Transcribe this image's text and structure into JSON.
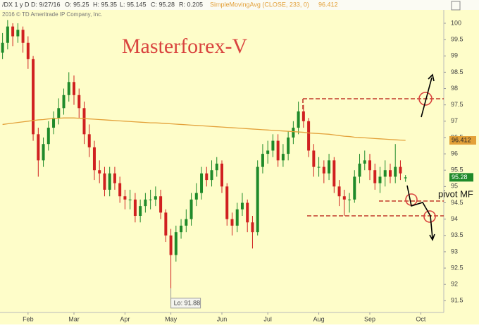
{
  "header": {
    "symbol": "/DX 1 y D",
    "date": "D: 9/27/16",
    "open": "O: 95.25",
    "high": "H: 95.35",
    "low": "L: 95.145",
    "close": "C: 95.28",
    "range": "R: 0.205",
    "study": "SimpleMovingAvg (CLOSE, 233, 0)",
    "study_value": "96.412",
    "copyright": "2016 © TD Ameritrade IP Company, Inc."
  },
  "chart_data": {
    "type": "candlestick",
    "title": "Masterforex-V",
    "categories": [
      null,
      null,
      null,
      null,
      null,
      "Feb",
      null,
      null,
      null,
      null,
      null,
      null,
      null,
      null,
      "Mar",
      null,
      null,
      null,
      null,
      null,
      null,
      null,
      null,
      null,
      "Apr",
      null,
      null,
      null,
      null,
      null,
      null,
      null,
      null,
      "May",
      null,
      null,
      null,
      null,
      null,
      null,
      null,
      null,
      null,
      "Jun",
      null,
      null,
      null,
      null,
      null,
      null,
      null,
      null,
      "Jul",
      null,
      null,
      null,
      null,
      null,
      null,
      null,
      null,
      null,
      "Aug",
      null,
      null,
      null,
      null,
      null,
      null,
      null,
      null,
      null,
      "Sep",
      null,
      null,
      null,
      null,
      null,
      null,
      null,
      null,
      null,
      "Oct",
      null,
      null,
      null,
      null
    ],
    "open": [
      99.1,
      99.4,
      99.9,
      99.6,
      99.8,
      99.4,
      98.9,
      96.6,
      95.8,
      96.3,
      96.8,
      97.1,
      97.4,
      97.8,
      98.2,
      97.8,
      97.4,
      96.6,
      96.2,
      95.5,
      95.4,
      94.9,
      95.4,
      95.1,
      94.7,
      94.6,
      94.6,
      94.1,
      94.4,
      94.6,
      94.6,
      94.7,
      94.2,
      93.5,
      92.9,
      93.6,
      93.8,
      94.0,
      94.6,
      94.8,
      95.4,
      95.2,
      95.5,
      95.7,
      95.0,
      94.0,
      93.8,
      94.3,
      94.5,
      93.9,
      93.6,
      95.6,
      96.0,
      96.1,
      96.4,
      95.8,
      96.0,
      96.5,
      96.8,
      97.3,
      97.0,
      96.1,
      95.6,
      95.6,
      95.4,
      95.8,
      95.0,
      94.7,
      94.6,
      94.6,
      95.3,
      95.7,
      95.8,
      95.5,
      95.1,
      95.3,
      95.5,
      95.3,
      95.6,
      95.25,
      null,
      null,
      null,
      null,
      null,
      null,
      null
    ],
    "high": [
      99.7,
      100.1,
      100.0,
      100.0,
      99.9,
      99.6,
      99.0,
      96.8,
      96.5,
      97.0,
      97.3,
      97.7,
      98.0,
      98.5,
      98.4,
      98.0,
      97.6,
      96.9,
      96.4,
      95.8,
      95.6,
      95.6,
      95.6,
      95.3,
      94.9,
      94.9,
      94.8,
      94.6,
      94.8,
      94.9,
      95.0,
      94.9,
      94.3,
      93.7,
      93.8,
      94.0,
      94.3,
      94.8,
      95.1,
      95.6,
      95.6,
      95.8,
      95.9,
      95.8,
      95.1,
      94.2,
      94.5,
      94.8,
      94.6,
      94.1,
      95.8,
      96.3,
      96.4,
      96.6,
      96.6,
      96.3,
      96.7,
      97.0,
      97.6,
      97.5,
      97.1,
      96.3,
      95.9,
      95.8,
      96.0,
      95.9,
      95.2,
      94.9,
      94.8,
      95.5,
      96.0,
      96.1,
      96.0,
      95.7,
      95.6,
      95.8,
      95.7,
      96.3,
      95.8,
      95.35,
      null,
      null,
      null,
      null,
      null,
      null,
      null
    ],
    "low": [
      98.9,
      99.2,
      99.3,
      99.4,
      99.1,
      98.6,
      96.4,
      95.3,
      95.6,
      96.1,
      96.6,
      96.9,
      97.2,
      97.6,
      97.5,
      97.1,
      96.3,
      95.9,
      95.2,
      95.1,
      94.7,
      94.7,
      94.9,
      94.5,
      94.3,
      94.3,
      93.9,
      93.9,
      94.2,
      94.3,
      94.4,
      94.0,
      93.3,
      91.88,
      92.7,
      93.4,
      93.6,
      93.8,
      94.4,
      94.6,
      95.0,
      95.0,
      95.3,
      94.8,
      93.8,
      93.5,
      93.6,
      94.1,
      93.6,
      93.1,
      93.5,
      95.4,
      95.7,
      95.9,
      95.6,
      95.6,
      95.8,
      96.3,
      96.6,
      96.8,
      95.9,
      95.3,
      95.3,
      95.1,
      95.2,
      94.8,
      94.4,
      94.1,
      94.2,
      94.5,
      95.1,
      95.5,
      95.2,
      94.9,
      94.8,
      95.0,
      95.1,
      95.1,
      95.2,
      95.145,
      null,
      null,
      null,
      null,
      null,
      null,
      null
    ],
    "close": [
      99.4,
      99.9,
      99.6,
      99.8,
      99.4,
      98.9,
      96.6,
      95.8,
      96.3,
      96.8,
      97.1,
      97.4,
      97.8,
      98.2,
      97.8,
      97.4,
      96.6,
      96.2,
      95.5,
      95.4,
      94.9,
      95.4,
      95.1,
      94.7,
      94.6,
      94.6,
      94.1,
      94.4,
      94.6,
      94.6,
      94.7,
      94.2,
      93.5,
      92.9,
      93.6,
      93.8,
      94.0,
      94.6,
      94.8,
      95.4,
      95.2,
      95.5,
      95.7,
      95.0,
      94.0,
      93.8,
      94.3,
      94.5,
      93.9,
      93.6,
      95.6,
      96.0,
      96.1,
      96.4,
      95.8,
      96.0,
      96.5,
      96.8,
      97.3,
      97.0,
      96.1,
      95.6,
      95.6,
      95.4,
      95.8,
      95.0,
      94.7,
      94.6,
      94.6,
      95.3,
      95.7,
      95.8,
      95.5,
      95.1,
      95.3,
      95.5,
      95.3,
      95.6,
      95.4,
      95.28,
      null,
      null,
      null,
      null,
      null,
      null,
      null
    ],
    "up_color": "#1f8a2a",
    "down_color": "#d02020",
    "overlay": {
      "color": "#e3a13a",
      "values": [
        96.9,
        96.92,
        96.94,
        96.96,
        96.98,
        97.0,
        97.02,
        97.04,
        97.05,
        97.07,
        97.08,
        97.09,
        97.1,
        97.1,
        97.1,
        97.09,
        97.08,
        97.07,
        97.06,
        97.05,
        97.04,
        97.03,
        97.02,
        97.01,
        97.0,
        96.99,
        96.98,
        96.97,
        96.96,
        96.95,
        96.95,
        96.94,
        96.93,
        96.92,
        96.91,
        96.9,
        96.89,
        96.88,
        96.87,
        96.86,
        96.85,
        96.84,
        96.83,
        96.82,
        96.81,
        96.8,
        96.79,
        96.78,
        96.77,
        96.76,
        96.75,
        96.74,
        96.73,
        96.72,
        96.71,
        96.7,
        96.69,
        96.68,
        96.67,
        96.66,
        96.64,
        96.63,
        96.62,
        96.61,
        96.6,
        96.58,
        96.56,
        96.54,
        96.53,
        96.51,
        96.5,
        96.49,
        96.48,
        96.47,
        96.46,
        96.45,
        96.44,
        96.43,
        96.42,
        96.412,
        null,
        null,
        null,
        null,
        null,
        null,
        null
      ]
    },
    "ylim": [
      91.14,
      100.41
    ],
    "yticks": [
      91.5,
      92,
      92.5,
      93,
      93.5,
      94,
      94.5,
      95,
      95.5,
      96,
      96.5,
      97,
      97.5,
      98,
      98.5,
      99,
      99.5,
      100
    ],
    "annotations": {
      "low_label": "Lo: 91.88",
      "sma_flag": "96.412",
      "price_flag": "95.28",
      "pivot": "pivot MF"
    }
  }
}
